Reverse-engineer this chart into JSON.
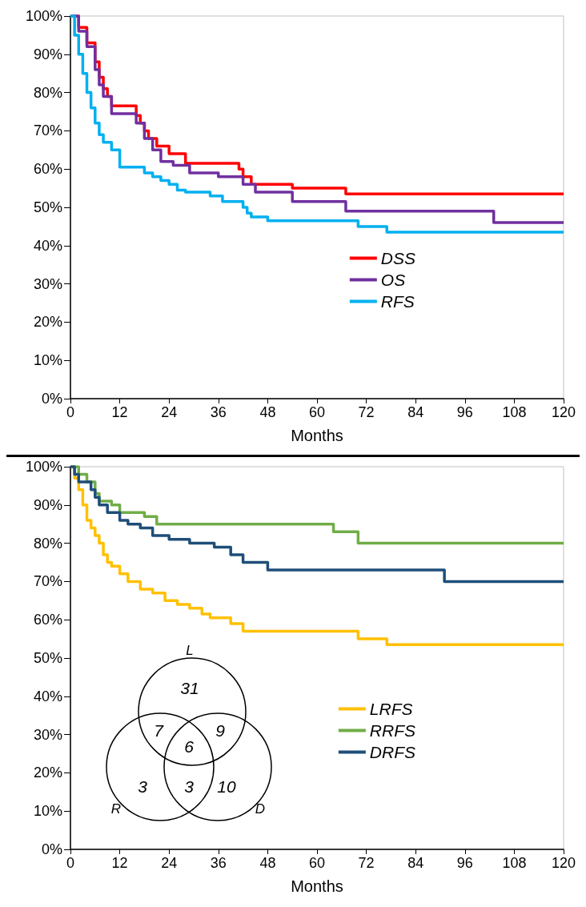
{
  "chart_data": [
    {
      "type": "step",
      "xlabel": "Months",
      "xlim": [
        0,
        120
      ],
      "xticks": [
        0,
        12,
        24,
        36,
        48,
        60,
        72,
        84,
        96,
        108,
        120
      ],
      "ylim": [
        0,
        100
      ],
      "yticks": [
        {
          "value": 0,
          "label": "0%"
        },
        {
          "value": 10,
          "label": "10%"
        },
        {
          "value": 20,
          "label": "20%"
        },
        {
          "value": 30,
          "label": "30%"
        },
        {
          "value": 40,
          "label": "40%"
        },
        {
          "value": 50,
          "label": "50%"
        },
        {
          "value": 60,
          "label": "60%"
        },
        {
          "value": 70,
          "label": "70%"
        },
        {
          "value": 80,
          "label": "80%"
        },
        {
          "value": 90,
          "label": "90%"
        },
        {
          "value": 100,
          "label": "100%"
        }
      ],
      "grid": false,
      "legend": "right",
      "marker": "none",
      "line_style": "solid",
      "series": [
        {
          "name": "DSS",
          "color": "#ff0000",
          "x": [
            0,
            2,
            4,
            6,
            7,
            8,
            9,
            10,
            16,
            17,
            18,
            19,
            21,
            24,
            28,
            41,
            42,
            44,
            54,
            67,
            120
          ],
          "values": [
            100,
            97,
            93,
            88,
            84,
            81,
            79,
            76.5,
            74,
            72,
            70,
            68,
            66,
            64,
            61.5,
            60,
            58,
            56,
            55,
            53.5,
            53.5
          ]
        },
        {
          "name": "OS",
          "color": "#7030a0",
          "x": [
            0,
            2,
            4,
            6,
            7,
            8,
            10,
            16,
            18,
            20,
            22,
            25,
            29,
            36,
            42,
            45,
            54,
            67,
            103,
            120
          ],
          "values": [
            100,
            96,
            92,
            86,
            82,
            79,
            74.5,
            72,
            68,
            65,
            62,
            61,
            59,
            58,
            56,
            54,
            51.5,
            49,
            46,
            46
          ]
        },
        {
          "name": "RFS",
          "color": "#00b0f0",
          "x": [
            0,
            1,
            2,
            3,
            4,
            5,
            6,
            7,
            8,
            10,
            12,
            18,
            20,
            22,
            24,
            26,
            28,
            34,
            37,
            42,
            43,
            44,
            48,
            70,
            77,
            120
          ],
          "values": [
            100,
            95,
            90,
            85,
            80,
            76,
            72,
            69,
            67,
            65,
            60.5,
            59,
            58,
            57,
            56,
            54.5,
            54,
            53,
            51.5,
            50,
            48.5,
            47.5,
            46.5,
            45,
            43.5,
            43.5
          ]
        }
      ]
    },
    {
      "type": "step",
      "xlabel": "Months",
      "xlim": [
        0,
        120
      ],
      "xticks": [
        0,
        12,
        24,
        36,
        48,
        60,
        72,
        84,
        96,
        108,
        120
      ],
      "ylim": [
        0,
        100
      ],
      "yticks": [
        {
          "value": 0,
          "label": "0%"
        },
        {
          "value": 10,
          "label": "10%"
        },
        {
          "value": 20,
          "label": "20%"
        },
        {
          "value": 30,
          "label": "30%"
        },
        {
          "value": 40,
          "label": "40%"
        },
        {
          "value": 50,
          "label": "50%"
        },
        {
          "value": 60,
          "label": "60%"
        },
        {
          "value": 70,
          "label": "70%"
        },
        {
          "value": 80,
          "label": "80%"
        },
        {
          "value": 90,
          "label": "90%"
        },
        {
          "value": 100,
          "label": "100%"
        }
      ],
      "grid": false,
      "legend": "right",
      "marker": "none",
      "line_style": "solid",
      "annotations": [
        "L",
        "R",
        "D",
        "31",
        "7",
        "9",
        "6",
        "3",
        "3",
        "10"
      ],
      "series": [
        {
          "name": "LRFS",
          "color": "#ffc000",
          "x": [
            0,
            1,
            2,
            3,
            4,
            5,
            6,
            7,
            8,
            9,
            10,
            12,
            14,
            17,
            20,
            23,
            26,
            29,
            32,
            34,
            39,
            42,
            70,
            77,
            120
          ],
          "values": [
            100,
            97,
            94,
            90,
            86,
            84,
            82,
            80,
            77,
            75,
            74,
            72,
            70,
            68,
            67,
            65,
            64,
            63,
            61.5,
            60.5,
            59,
            57,
            55,
            53.5,
            53.5
          ]
        },
        {
          "name": "RRFS",
          "color": "#70ad47",
          "x": [
            0,
            2,
            4,
            6,
            7,
            10,
            12,
            18,
            21,
            64,
            70,
            120
          ],
          "values": [
            100,
            98,
            96,
            93,
            91,
            90,
            88,
            87,
            85,
            83,
            80,
            80
          ]
        },
        {
          "name": "DRFS",
          "color": "#1f4e79",
          "x": [
            0,
            1,
            2,
            5,
            6,
            7,
            9,
            12,
            14,
            17,
            20,
            24,
            29,
            35,
            39,
            42,
            48,
            91,
            120
          ],
          "values": [
            100,
            98,
            96,
            94,
            92,
            90,
            88,
            86,
            85,
            84,
            82,
            81,
            80,
            79,
            77,
            75,
            73,
            70,
            70
          ]
        }
      ]
    }
  ]
}
